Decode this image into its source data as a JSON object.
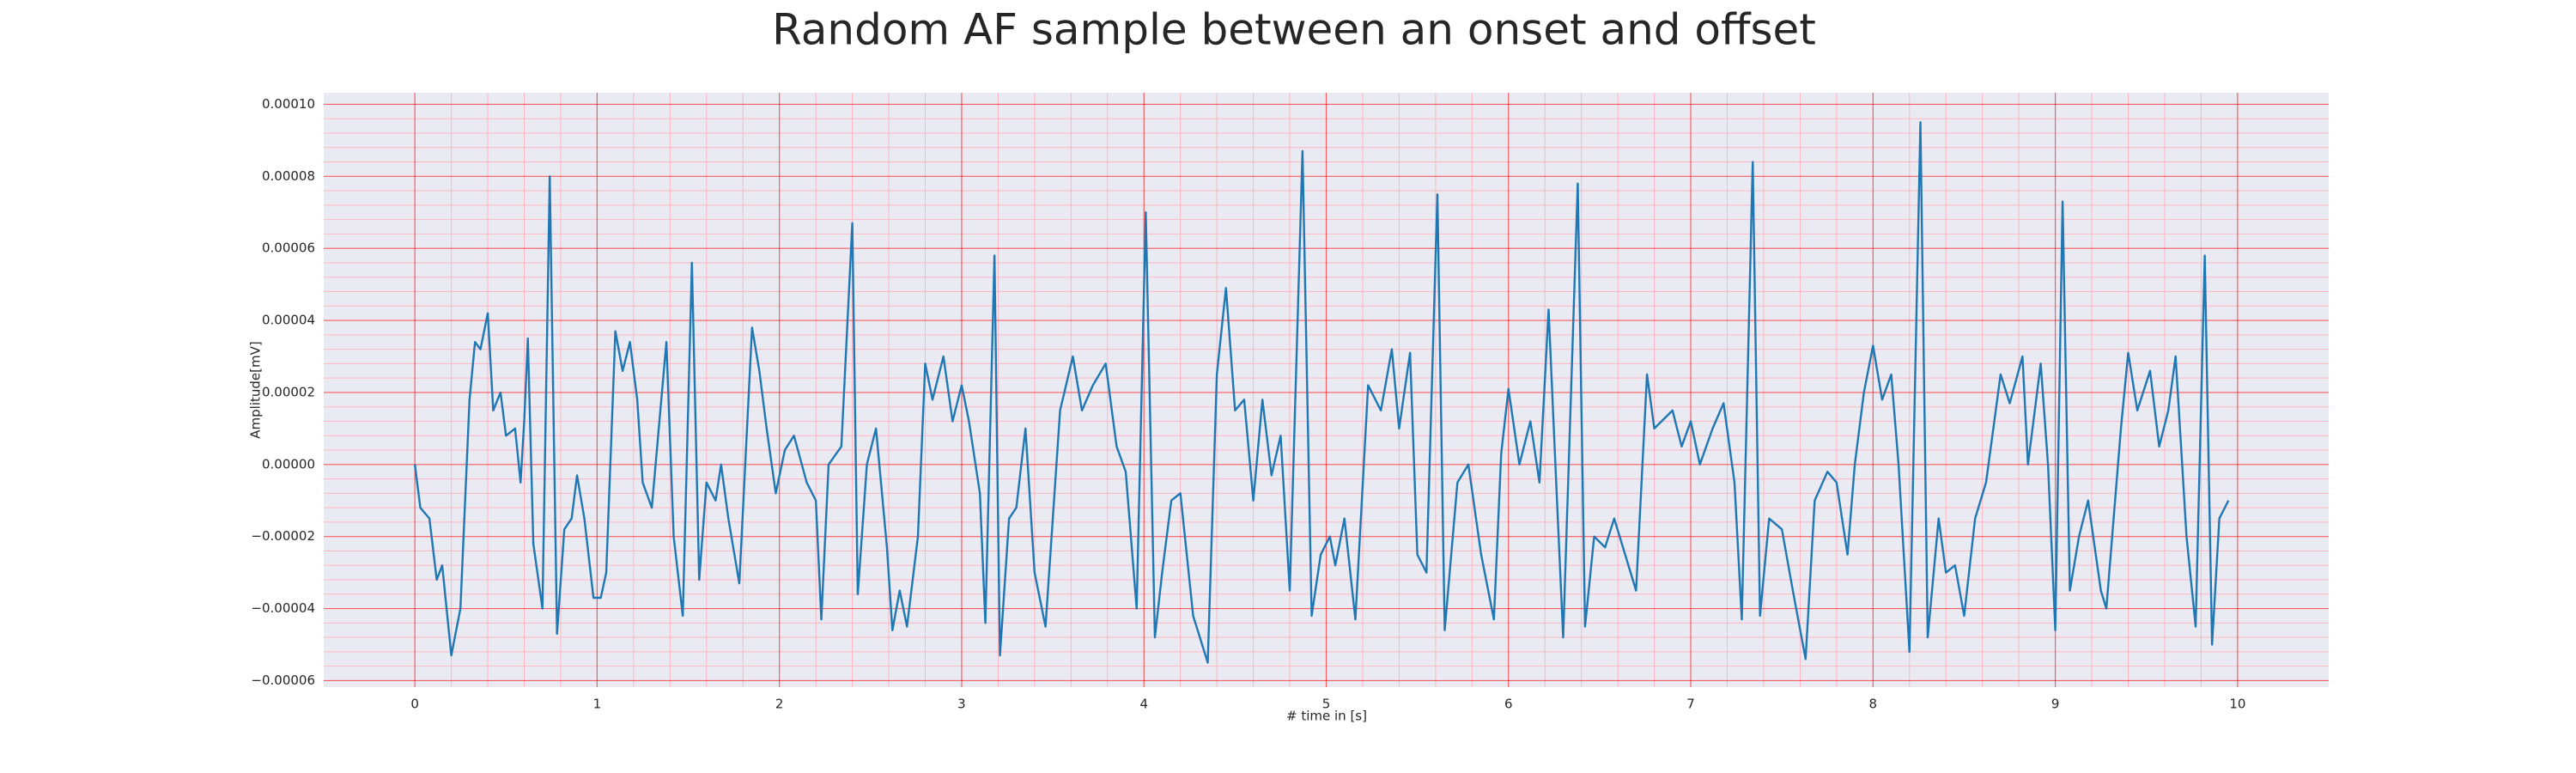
{
  "chart_data": {
    "type": "line",
    "title": "Random AF sample between an onset and offset",
    "x_label": "# time in [s]",
    "y_label": "Amplitude[mV]",
    "color": "#1f77b4",
    "grid": true,
    "grid_color": "#ff0000",
    "minor_grid": true,
    "minor_grid_color": "#ffb6c1",
    "background": "#eaeaf2",
    "xlim": [
      -0.5,
      10.5
    ],
    "ylim": [
      -6.18e-05,
      0.0001032
    ],
    "xticks": [
      0,
      1,
      2,
      3,
      4,
      5,
      6,
      7,
      8,
      9,
      10
    ],
    "yticks": [
      {
        "value": -6e-05,
        "label": "−0.00006"
      },
      {
        "value": -4e-05,
        "label": "−0.00004"
      },
      {
        "value": -2e-05,
        "label": "−0.00002"
      },
      {
        "value": 0,
        "label": "0.00000"
      },
      {
        "value": 2e-05,
        "label": "0.00002"
      },
      {
        "value": 4e-05,
        "label": "0.00004"
      },
      {
        "value": 6e-05,
        "label": "0.00006"
      },
      {
        "value": 8e-05,
        "label": "0.00008"
      },
      {
        "value": 0.0001,
        "label": "0.00010"
      }
    ],
    "x": [
      0,
      0.03,
      0.08,
      0.12,
      0.15,
      0.2,
      0.25,
      0.3,
      0.33,
      0.36,
      0.4,
      0.43,
      0.47,
      0.5,
      0.55,
      0.58,
      0.6,
      0.62,
      0.65,
      0.7,
      0.74,
      0.78,
      0.82,
      0.86,
      0.89,
      0.93,
      0.98,
      1.02,
      1.05,
      1.1,
      1.14,
      1.18,
      1.22,
      1.25,
      1.3,
      1.38,
      1.42,
      1.47,
      1.52,
      1.56,
      1.6,
      1.65,
      1.68,
      1.72,
      1.78,
      1.85,
      1.89,
      1.93,
      1.98,
      2.03,
      2.08,
      2.15,
      2.2,
      2.23,
      2.27,
      2.34,
      2.4,
      2.43,
      2.48,
      2.53,
      2.59,
      2.62,
      2.66,
      2.7,
      2.76,
      2.8,
      2.84,
      2.9,
      2.95,
      3,
      3.04,
      3.1,
      3.13,
      3.18,
      3.21,
      3.26,
      3.3,
      3.35,
      3.4,
      3.46,
      3.54,
      3.61,
      3.66,
      3.72,
      3.79,
      3.85,
      3.9,
      3.96,
      4.01,
      4.06,
      4.1,
      4.15,
      4.2,
      4.27,
      4.35,
      4.4,
      4.45,
      4.5,
      4.55,
      4.6,
      4.65,
      4.7,
      4.75,
      4.8,
      4.87,
      4.92,
      4.97,
      5.02,
      5.05,
      5.1,
      5.16,
      5.23,
      5.3,
      5.36,
      5.4,
      5.46,
      5.5,
      5.55,
      5.61,
      5.65,
      5.72,
      5.78,
      5.85,
      5.92,
      5.96,
      6,
      6.06,
      6.12,
      6.17,
      6.22,
      6.26,
      6.3,
      6.38,
      6.42,
      6.47,
      6.53,
      6.58,
      6.64,
      6.7,
      6.76,
      6.8,
      6.9,
      6.95,
      7,
      7.05,
      7.12,
      7.18,
      7.24,
      7.28,
      7.34,
      7.38,
      7.43,
      7.5,
      7.56,
      7.63,
      7.68,
      7.75,
      7.8,
      7.86,
      7.9,
      7.95,
      8,
      8.05,
      8.1,
      8.14,
      8.2,
      8.26,
      8.3,
      8.36,
      8.4,
      8.45,
      8.5,
      8.56,
      8.62,
      8.7,
      8.75,
      8.82,
      8.85,
      8.92,
      8.96,
      9,
      9.04,
      9.08,
      9.13,
      9.18,
      9.25,
      9.28,
      9.36,
      9.4,
      9.45,
      9.52,
      9.57,
      9.62,
      9.66,
      9.72,
      9.77,
      9.82,
      9.86,
      9.9,
      9.95
    ],
    "values": [
      0,
      -1.2e-05,
      -1.5e-05,
      -3.2e-05,
      -2.8e-05,
      -5.3e-05,
      -4e-05,
      1.8e-05,
      3.4e-05,
      3.2e-05,
      4.2e-05,
      1.5e-05,
      2e-05,
      8e-06,
      1e-05,
      -5e-06,
      1.2e-05,
      3.5e-05,
      -2.2e-05,
      -4e-05,
      8e-05,
      -4.7e-05,
      -1.8e-05,
      -1.5e-05,
      -3e-06,
      -1.5e-05,
      -3.7e-05,
      -3.7e-05,
      -3e-05,
      3.7e-05,
      2.6e-05,
      3.4e-05,
      1.8e-05,
      -5e-06,
      -1.2e-05,
      3.4e-05,
      -2e-05,
      -4.2e-05,
      5.6e-05,
      -3.2e-05,
      -5e-06,
      -1e-05,
      0,
      -1.5e-05,
      -3.3e-05,
      3.8e-05,
      2.6e-05,
      1e-05,
      -8e-06,
      4e-06,
      8e-06,
      -5e-06,
      -1e-05,
      -4.3e-05,
      0,
      5e-06,
      6.7e-05,
      -3.6e-05,
      0,
      1e-05,
      -2.3e-05,
      -4.6e-05,
      -3.5e-05,
      -4.5e-05,
      -2e-05,
      2.8e-05,
      1.8e-05,
      3e-05,
      1.2e-05,
      2.2e-05,
      1.2e-05,
      -8e-06,
      -4.4e-05,
      5.8e-05,
      -5.3e-05,
      -1.5e-05,
      -1.2e-05,
      1e-05,
      -3e-05,
      -4.5e-05,
      1.5e-05,
      3e-05,
      1.5e-05,
      2.2e-05,
      2.8e-05,
      5e-06,
      -2e-06,
      -4e-05,
      7e-05,
      -4.8e-05,
      -3e-05,
      -1e-05,
      -8e-06,
      -4.2e-05,
      -5.5e-05,
      2.5e-05,
      4.9e-05,
      1.5e-05,
      1.8e-05,
      -1e-05,
      1.8e-05,
      -3e-06,
      8e-06,
      -3.5e-05,
      8.7e-05,
      -4.2e-05,
      -2.5e-05,
      -2e-05,
      -2.8e-05,
      -1.5e-05,
      -4.3e-05,
      2.2e-05,
      1.5e-05,
      3.2e-05,
      1e-05,
      3.1e-05,
      -2.5e-05,
      -3e-05,
      7.5e-05,
      -4.6e-05,
      -5e-06,
      0,
      -2.5e-05,
      -4.3e-05,
      3e-06,
      2.1e-05,
      0,
      1.2e-05,
      -5e-06,
      4.3e-05,
      -3e-06,
      -4.8e-05,
      7.8e-05,
      -4.5e-05,
      -2e-05,
      -2.3e-05,
      -1.5e-05,
      -2.5e-05,
      -3.5e-05,
      2.5e-05,
      1e-05,
      1.5e-05,
      5e-06,
      1.2e-05,
      0,
      1e-05,
      1.7e-05,
      -5e-06,
      -4.3e-05,
      8.4e-05,
      -4.2e-05,
      -1.5e-05,
      -1.8e-05,
      -3.5e-05,
      -5.4e-05,
      -1e-05,
      -2e-06,
      -5e-06,
      -2.5e-05,
      0,
      2e-05,
      3.3e-05,
      1.8e-05,
      2.5e-05,
      0,
      -5.2e-05,
      9.5e-05,
      -4.8e-05,
      -1.5e-05,
      -3e-05,
      -2.8e-05,
      -4.2e-05,
      -1.5e-05,
      -5e-06,
      2.5e-05,
      1.7e-05,
      3e-05,
      0,
      2.8e-05,
      0,
      -4.6e-05,
      7.3e-05,
      -3.5e-05,
      -2e-05,
      -1e-05,
      -3.5e-05,
      -4e-05,
      1e-05,
      3.1e-05,
      1.5e-05,
      2.6e-05,
      5e-06,
      1.5e-05,
      3e-05,
      -2e-05,
      -4.5e-05,
      5.8e-05,
      -5e-05,
      -1.5e-05,
      -1e-05
    ]
  }
}
